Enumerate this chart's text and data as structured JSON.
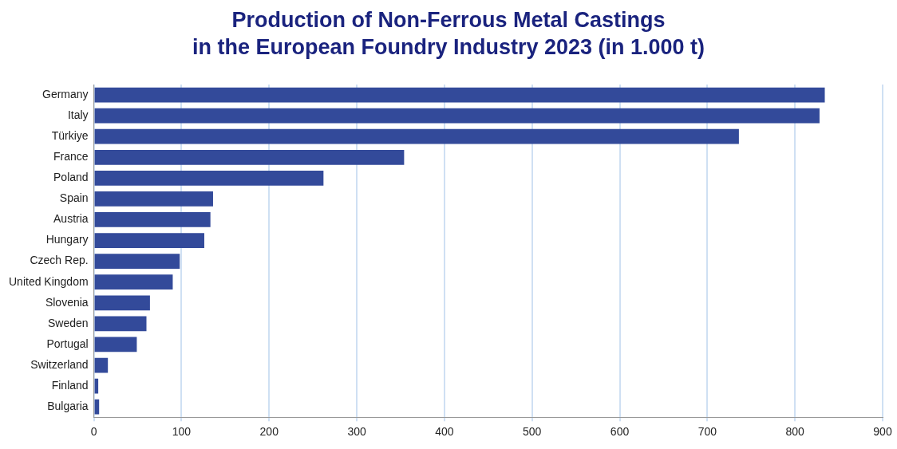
{
  "chart_data": {
    "type": "bar",
    "orientation": "horizontal",
    "title": "Production of Non-Ferrous Metal Castings\nin the European Foundry Industry 2023 (in 1.000 t)",
    "categories": [
      "Germany",
      "Italy",
      "Türkiye",
      "France",
      "Poland",
      "Spain",
      "Austria",
      "Hungary",
      "Czech Rep.",
      "United Kingdom",
      "Slovenia",
      "Sweden",
      "Portugal",
      "Switzerland",
      "Finland",
      "Bulgaria"
    ],
    "values": [
      834,
      828,
      736,
      354,
      262,
      136,
      133,
      126,
      98,
      90,
      64,
      60,
      49,
      16,
      5,
      6
    ],
    "color": "#334a9a",
    "xlim": [
      0,
      900
    ],
    "xticks": [
      0,
      100,
      200,
      300,
      400,
      500,
      600,
      700,
      800,
      900
    ],
    "grid": "x",
    "legend": false
  }
}
